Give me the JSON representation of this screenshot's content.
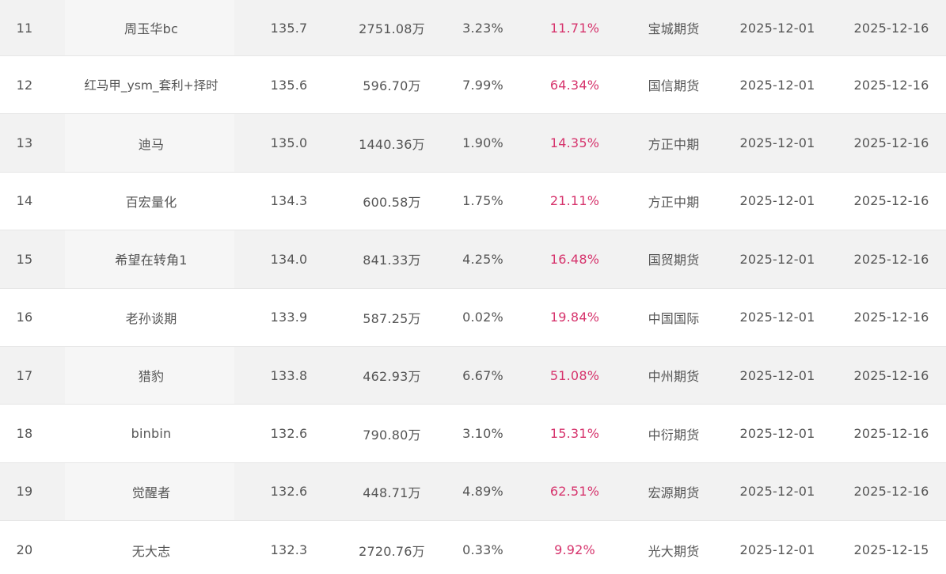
{
  "rows": [
    {
      "rank": "11",
      "name": "周玉华bc",
      "score": "135.7",
      "equity": "2751.08万",
      "drawdown": "3.23%",
      "return": "11.71%",
      "broker": "宝城期货",
      "start": "2025-12-01",
      "end": "2025-12-16"
    },
    {
      "rank": "12",
      "name": "红马甲_ysm_套利+择时",
      "score": "135.6",
      "equity": "596.70万",
      "drawdown": "7.99%",
      "return": "64.34%",
      "broker": "国信期货",
      "start": "2025-12-01",
      "end": "2025-12-16"
    },
    {
      "rank": "13",
      "name": "迪马",
      "score": "135.0",
      "equity": "1440.36万",
      "drawdown": "1.90%",
      "return": "14.35%",
      "broker": "方正中期",
      "start": "2025-12-01",
      "end": "2025-12-16"
    },
    {
      "rank": "14",
      "name": "百宏量化",
      "score": "134.3",
      "equity": "600.58万",
      "drawdown": "1.75%",
      "return": "21.11%",
      "broker": "方正中期",
      "start": "2025-12-01",
      "end": "2025-12-16"
    },
    {
      "rank": "15",
      "name": "希望在转角1",
      "score": "134.0",
      "equity": "841.33万",
      "drawdown": "4.25%",
      "return": "16.48%",
      "broker": "国贸期货",
      "start": "2025-12-01",
      "end": "2025-12-16"
    },
    {
      "rank": "16",
      "name": "老孙谈期",
      "score": "133.9",
      "equity": "587.25万",
      "drawdown": "0.02%",
      "return": "19.84%",
      "broker": "中国国际",
      "start": "2025-12-01",
      "end": "2025-12-16"
    },
    {
      "rank": "17",
      "name": "猎豹",
      "score": "133.8",
      "equity": "462.93万",
      "drawdown": "6.67%",
      "return": "51.08%",
      "broker": "中州期货",
      "start": "2025-12-01",
      "end": "2025-12-16"
    },
    {
      "rank": "18",
      "name": "binbin",
      "score": "132.6",
      "equity": "790.80万",
      "drawdown": "3.10%",
      "return": "15.31%",
      "broker": "中衍期货",
      "start": "2025-12-01",
      "end": "2025-12-16"
    },
    {
      "rank": "19",
      "name": "觉醒者",
      "score": "132.6",
      "equity": "448.71万",
      "drawdown": "4.89%",
      "return": "62.51%",
      "broker": "宏源期货",
      "start": "2025-12-01",
      "end": "2025-12-16"
    },
    {
      "rank": "20",
      "name": "无大志",
      "score": "132.3",
      "equity": "2720.76万",
      "drawdown": "0.33%",
      "return": "9.92%",
      "broker": "光大期货",
      "start": "2025-12-01",
      "end": "2025-12-15"
    }
  ],
  "colors": {
    "row_shaded": "#f2f2f2",
    "row_plain": "#ffffff",
    "text": "#555555",
    "return_text": "#d6336c",
    "divider": "#e6e6e6"
  }
}
